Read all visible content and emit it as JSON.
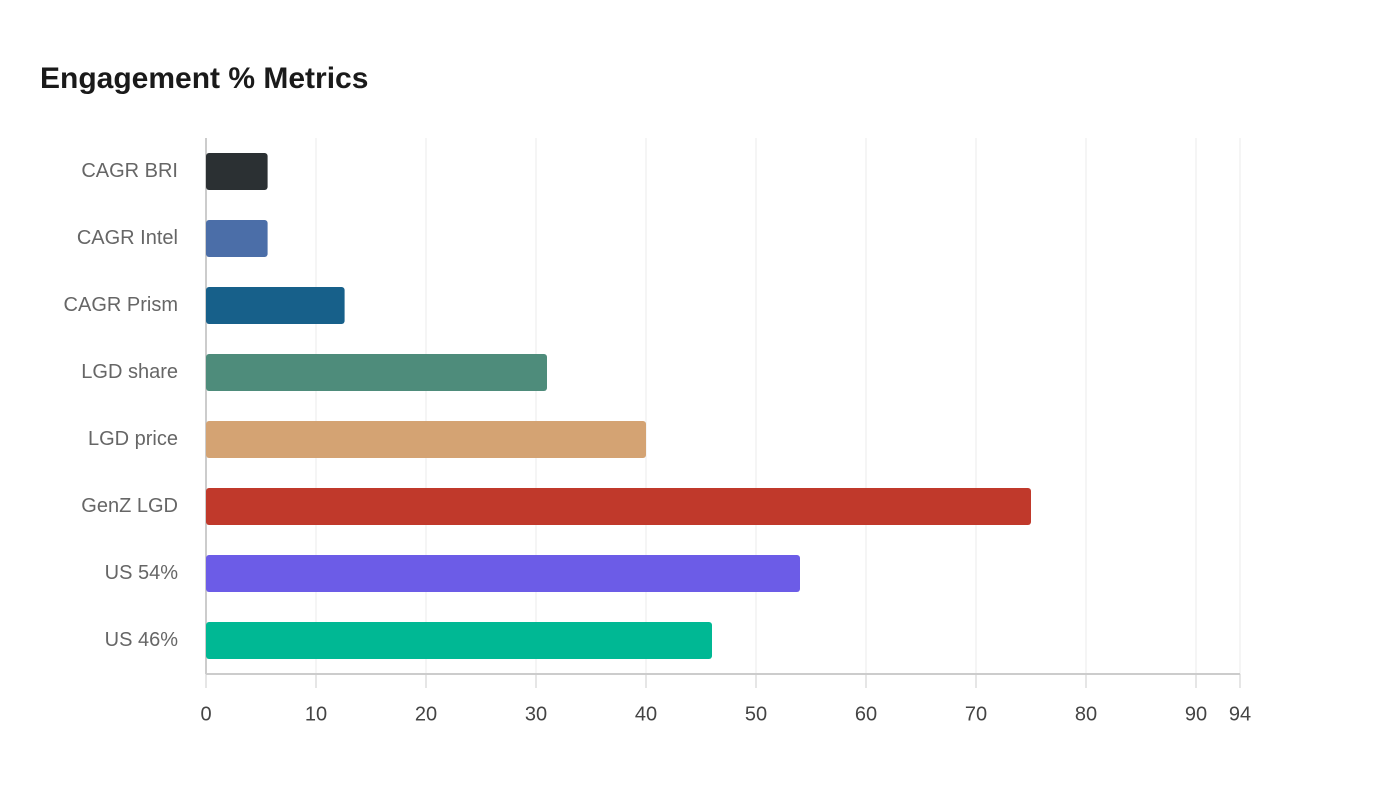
{
  "chart_data": {
    "type": "bar",
    "orientation": "horizontal",
    "title": "Engagement % Metrics",
    "categories": [
      "CAGR BRI",
      "CAGR Intel",
      "CAGR Prism",
      "LGD share",
      "LGD price",
      "GenZ LGD",
      "US 54%",
      "US 46%"
    ],
    "values": [
      5.6,
      5.6,
      12.6,
      31,
      40,
      75,
      54,
      46
    ],
    "colors": [
      "#2b3033",
      "#4b6ea8",
      "#17608a",
      "#4e8c7b",
      "#d4a373",
      "#c0392b",
      "#6c5ce7",
      "#00b894"
    ],
    "xlim": [
      0,
      94
    ],
    "xticks": [
      0,
      10,
      20,
      30,
      40,
      50,
      60,
      70,
      80,
      90,
      94
    ],
    "grid": true
  }
}
